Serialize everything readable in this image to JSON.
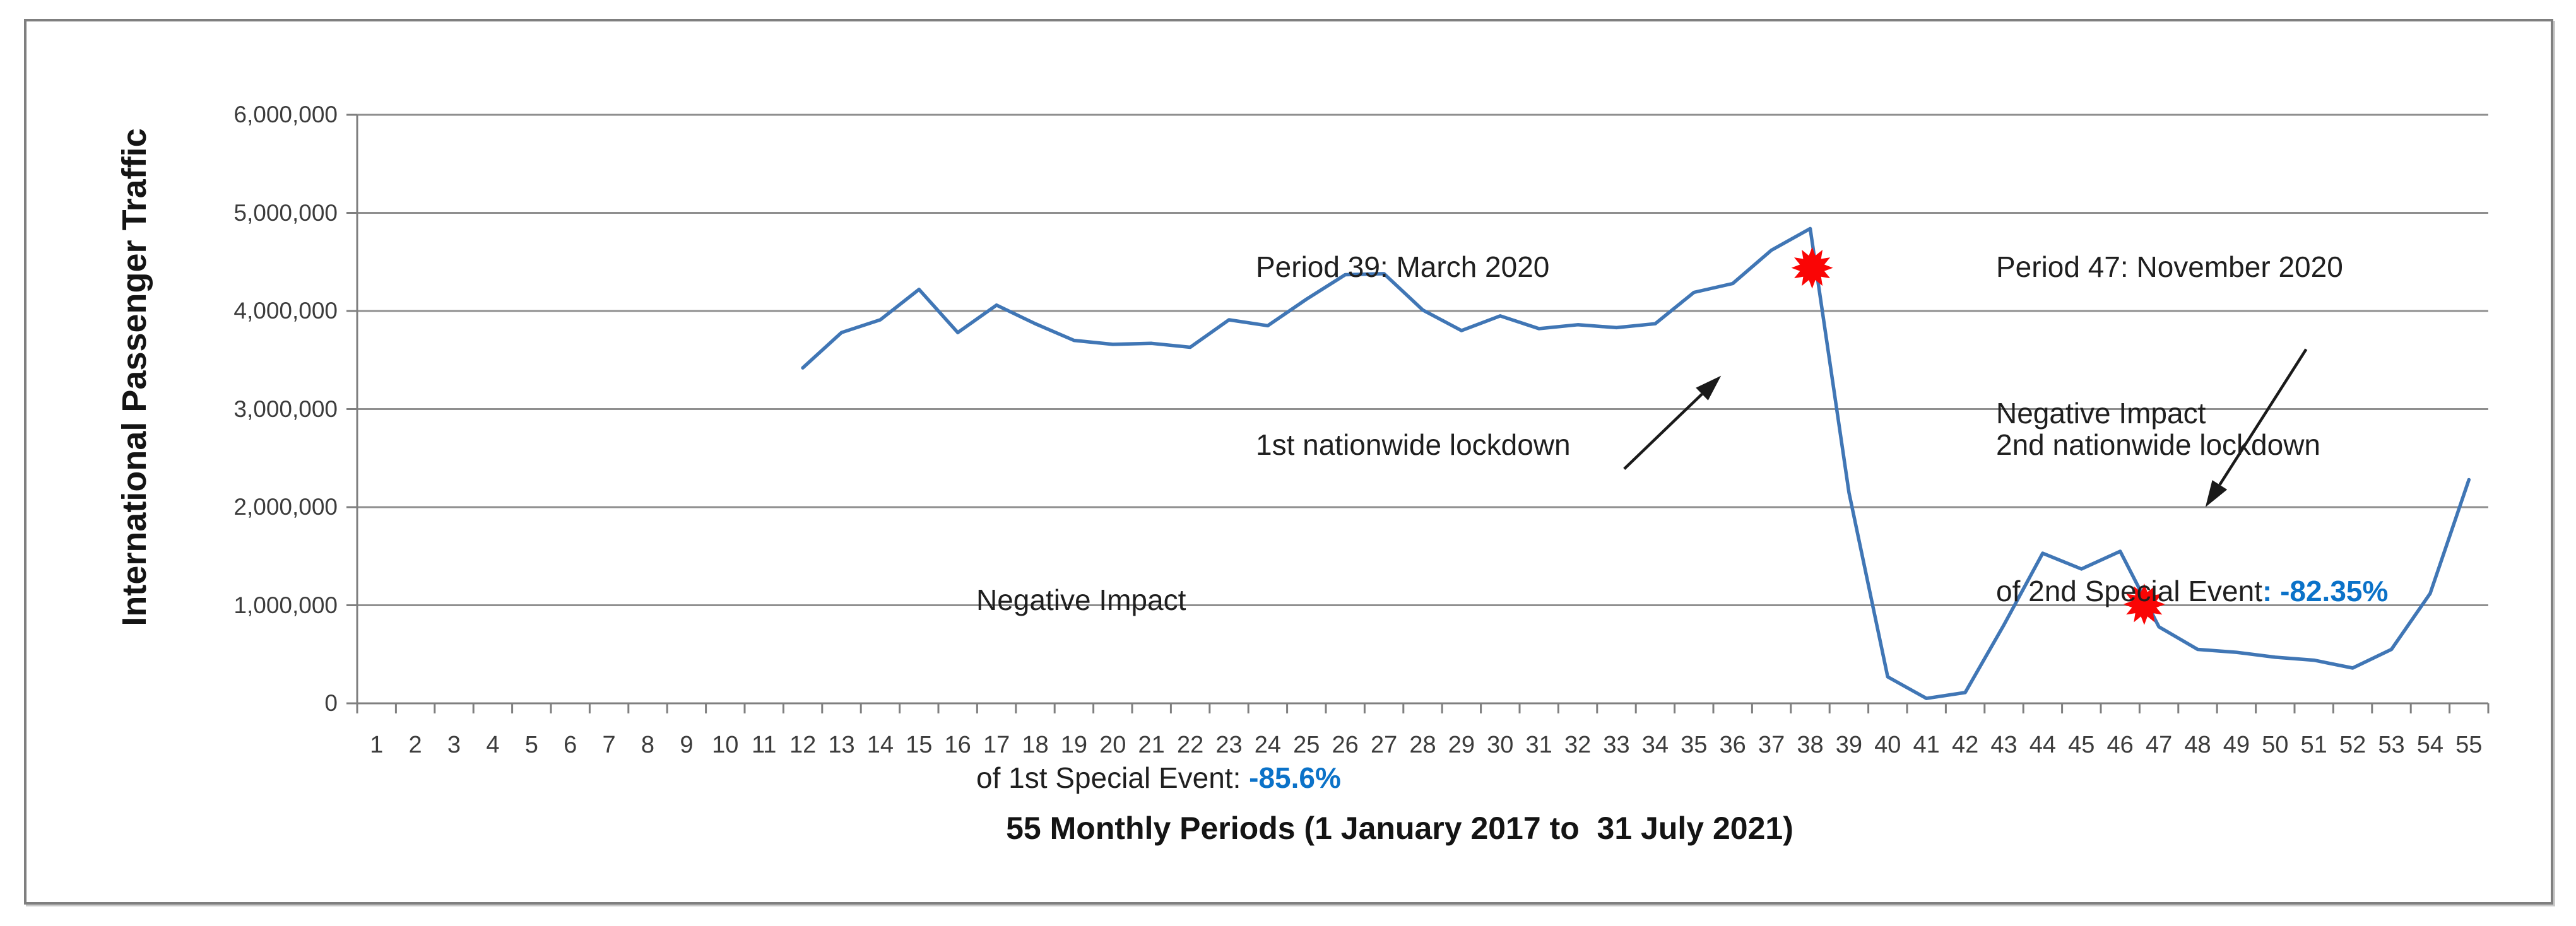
{
  "figure": {
    "background": "#ffffff",
    "border_color": "#7f7f7f"
  },
  "chart_data": {
    "type": "line",
    "xlabel": "55 Monthly Periods (1 January 2017 to  31 July 2021)",
    "ylabel": "International Passenger Traffic",
    "ylim": [
      0,
      6000000
    ],
    "grid": "horizontal",
    "grid_color": "#8f8f8f",
    "axis_color": "#7f7f7f",
    "legend_position": "none",
    "y_tick_labels": [
      "0",
      "1,000,000",
      "2,000,000",
      "3,000,000",
      "4,000,000",
      "5,000,000",
      "6,000,000"
    ],
    "x_tick_labels": [
      "1",
      "2",
      "3",
      "4",
      "5",
      "6",
      "7",
      "8",
      "9",
      "10",
      "11",
      "12",
      "13",
      "14",
      "15",
      "16",
      "17",
      "18",
      "19",
      "20",
      "21",
      "22",
      "23",
      "24",
      "25",
      "26",
      "27",
      "28",
      "29",
      "30",
      "31",
      "32",
      "33",
      "34",
      "35",
      "36",
      "37",
      "38",
      "39",
      "40",
      "41",
      "42",
      "43",
      "44",
      "45",
      "46",
      "47",
      "48",
      "49",
      "50",
      "51",
      "52",
      "53",
      "54",
      "55"
    ],
    "series": [
      {
        "name": "International Passenger Traffic",
        "color": "#4076b5",
        "values": [
          null,
          null,
          null,
          null,
          null,
          null,
          null,
          null,
          null,
          null,
          null,
          3420000,
          3780000,
          3910000,
          4220000,
          3780000,
          4060000,
          3870000,
          3700000,
          3660000,
          3670000,
          3630000,
          3910000,
          3850000,
          4120000,
          4370000,
          4380000,
          4010000,
          3800000,
          3950000,
          3820000,
          3860000,
          3830000,
          3870000,
          4190000,
          4280000,
          4620000,
          4840000,
          2150000,
          270000,
          50000,
          110000,
          800000,
          1530000,
          1370000,
          1550000,
          780000,
          550000,
          520000,
          470000,
          440000,
          360000,
          550000,
          1120000,
          2280000
        ]
      }
    ],
    "event_markers": [
      {
        "name": "special-event-1",
        "label": "Period 39: March 2020",
        "x": 38.05,
        "y": 4440000,
        "color": "#fa0505"
      },
      {
        "name": "special-event-2",
        "label": "Period 47: November 2020",
        "x": 46.62,
        "y": 1010000,
        "color": "#fa0505"
      }
    ],
    "arrows": [
      {
        "name": "arrow-to-1st-event",
        "from_x": 33.2,
        "from_y": 2390000,
        "to_x": 35.7,
        "to_y": 3340000
      },
      {
        "name": "arrow-to-2nd-event",
        "from_x": 50.8,
        "from_y": 3610000,
        "to_x": 48.2,
        "to_y": 2000000
      }
    ]
  },
  "annotations": {
    "period39": {
      "line1": "Period 39: March 2020",
      "line2": "1st nationwide lockdown"
    },
    "period47": {
      "line1": "Period 47: November 2020",
      "line2": "2nd nationwide lockdown"
    },
    "impact1": {
      "line1": "Negative Impact",
      "line2_prefix": "of 1st Special Event: ",
      "value": "-85.6%",
      "value_color": "#0b72c8"
    },
    "impact2": {
      "line1": "Negative Impact",
      "line2_prefix": "of 2nd Special Event",
      "colon": ": ",
      "value": "-82.35%",
      "value_color": "#0b72c8"
    }
  }
}
